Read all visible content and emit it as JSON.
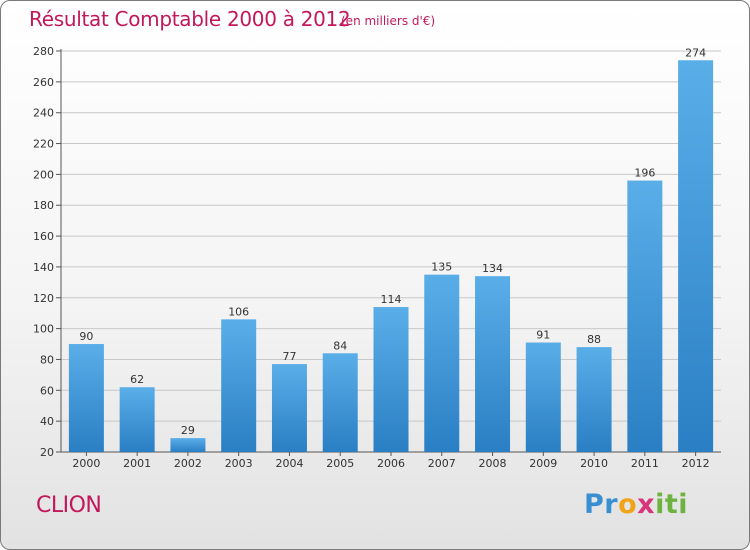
{
  "header": {
    "title": "Résultat Comptable 2000 à 2012",
    "subtitle": "(en milliers d'€)"
  },
  "footer": {
    "commune": "CLION",
    "logo": "Proxiti"
  },
  "colors": {
    "accent": "#c2185b",
    "bar_light": "#5aaee8",
    "bar_dark": "#2a7fc4",
    "grid": "#c8c8c8"
  },
  "chart_data": {
    "type": "bar",
    "title": "Résultat Comptable 2000 à 2012",
    "subtitle": "(en milliers d'€)",
    "xlabel": "",
    "ylabel": "",
    "categories": [
      "2000",
      "2001",
      "2002",
      "2003",
      "2004",
      "2005",
      "2006",
      "2007",
      "2008",
      "2009",
      "2010",
      "2011",
      "2012"
    ],
    "values": [
      90,
      62,
      29,
      106,
      77,
      84,
      114,
      135,
      134,
      91,
      88,
      196,
      274
    ],
    "ylim": [
      20,
      280
    ],
    "yticks": [
      20,
      40,
      60,
      80,
      100,
      120,
      140,
      160,
      180,
      200,
      220,
      240,
      260,
      280
    ],
    "grid": true,
    "legend": "none"
  }
}
